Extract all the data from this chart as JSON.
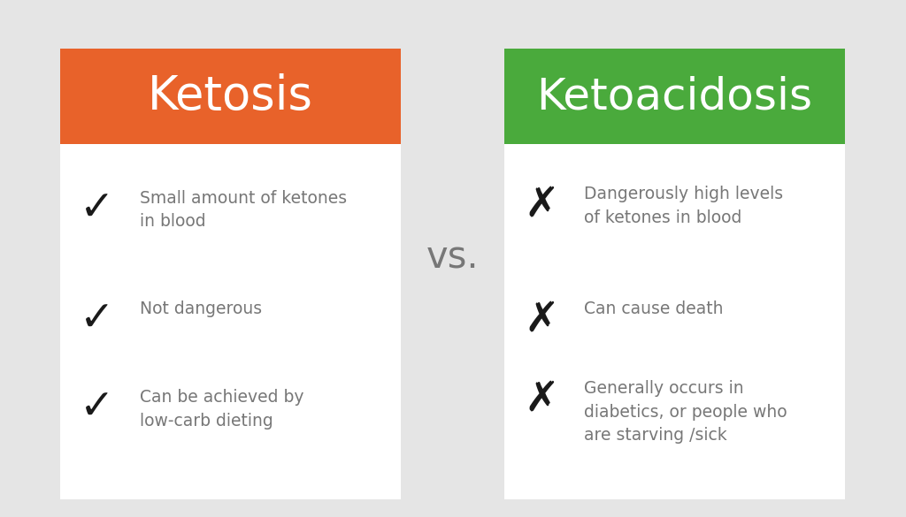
{
  "background_color": "#e5e5e5",
  "left_title": "Ketosis",
  "right_title": "Ketoacidosis",
  "vs_text": "vs.",
  "left_header_color": "#e8622a",
  "right_header_color": "#4aaa3c",
  "card_bg_color": "#ffffff",
  "title_text_color": "#ffffff",
  "body_text_color": "#777777",
  "symbol_color": "#1a1a1a",
  "left_items": [
    "Small amount of ketones\nin blood",
    "Not dangerous",
    "Can be achieved by\nlow-carb dieting"
  ],
  "right_items": [
    "Dangerously high levels\nof ketones in blood",
    "Can cause death",
    "Generally occurs in\ndiabetics, or people who\nare starving /sick"
  ],
  "left_symbol": "✓",
  "right_symbol": "✗",
  "fig_width": 10.24,
  "fig_height": 5.85,
  "dpi": 100
}
